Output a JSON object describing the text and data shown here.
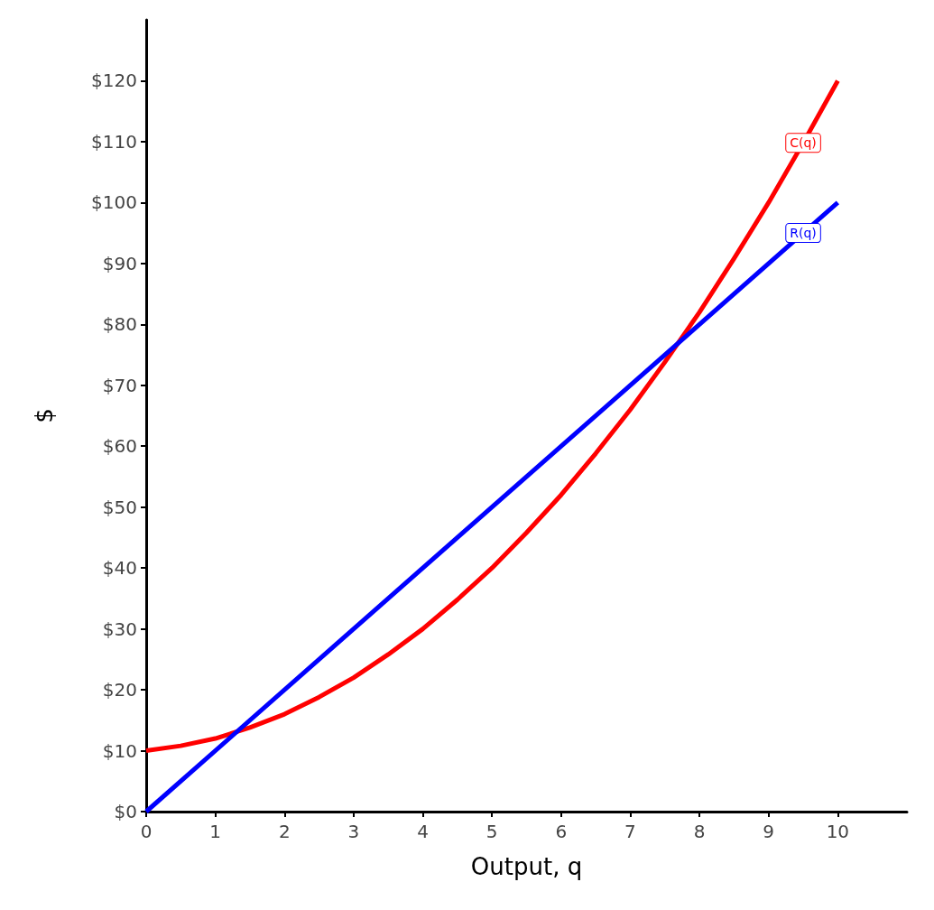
{
  "chart_data": {
    "type": "line",
    "xlabel": "Output, q",
    "ylabel": "$",
    "x": [
      0,
      0.5,
      1,
      1.5,
      2,
      2.5,
      3,
      3.5,
      4,
      4.5,
      5,
      5.5,
      6,
      6.5,
      7,
      7.5,
      8,
      8.5,
      9,
      9.5,
      10
    ],
    "series": [
      {
        "name": "C(q)",
        "color": "#ff0000",
        "values": [
          10,
          10.8,
          12,
          13.8,
          16,
          18.8,
          22,
          25.8,
          30,
          34.8,
          40,
          45.8,
          52,
          58.8,
          66,
          73.8,
          82,
          90.8,
          100,
          109.8,
          120
        ]
      },
      {
        "name": "R(q)",
        "color": "#0000ff",
        "x": [
          0,
          9.5,
          10
        ],
        "values": [
          0,
          95,
          100
        ]
      }
    ],
    "xlim": [
      0,
      11
    ],
    "xticks": [
      0,
      1,
      2,
      3,
      4,
      5,
      6,
      7,
      8,
      9,
      10
    ],
    "ylim": [
      0,
      130
    ],
    "yticks": [
      {
        "value": 0,
        "label": "$0"
      },
      {
        "value": 10,
        "label": "$10"
      },
      {
        "value": 20,
        "label": "$20"
      },
      {
        "value": 30,
        "label": "$30"
      },
      {
        "value": 40,
        "label": "$40"
      },
      {
        "value": 50,
        "label": "$50"
      },
      {
        "value": 60,
        "label": "$60"
      },
      {
        "value": 70,
        "label": "$70"
      },
      {
        "value": 80,
        "label": "$80"
      },
      {
        "value": 90,
        "label": "$90"
      },
      {
        "value": 100,
        "label": "$100"
      },
      {
        "value": 110,
        "label": "$110"
      },
      {
        "value": 120,
        "label": "$120"
      }
    ],
    "grid": false,
    "marker": "none",
    "line_style": "solid"
  }
}
